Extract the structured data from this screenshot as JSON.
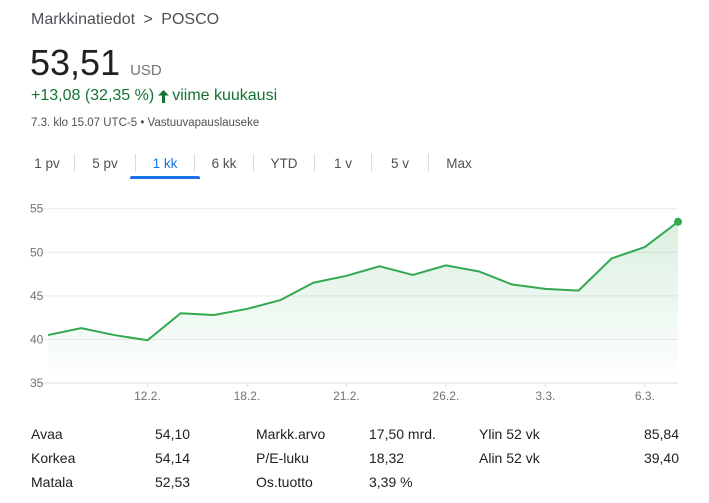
{
  "breadcrumb": {
    "parent": "Markkinatiedot",
    "separator": ">",
    "current": "POSCO"
  },
  "quote": {
    "price": "53,51",
    "currency": "USD",
    "change": "+13,08 (32,35 %)",
    "period_label": "viime kuukausi",
    "timestamp": "7.3. klo 15.07 UTC-5",
    "bullet": "•",
    "disclaimer": "Vastuuvapauslauseke"
  },
  "tabs": [
    {
      "label": "1 pv",
      "active": false
    },
    {
      "label": "5 pv",
      "active": false
    },
    {
      "label": "1 kk",
      "active": true
    },
    {
      "label": "6 kk",
      "active": false
    },
    {
      "label": "YTD",
      "active": false
    },
    {
      "label": "1 v",
      "active": false
    },
    {
      "label": "5 v",
      "active": false
    },
    {
      "label": "Max",
      "active": false
    }
  ],
  "colors": {
    "up": "#137333",
    "line": "#34a853",
    "accent": "#1a73e8",
    "grid": "#e8eaed"
  },
  "chart_data": {
    "type": "area",
    "title": "",
    "xlabel": "",
    "ylabel": "",
    "ylim": [
      35,
      56
    ],
    "yticks": [
      35,
      40,
      45,
      50,
      55
    ],
    "x_tick_labels": [
      "12.2.",
      "18.2.",
      "21.2.",
      "26.2.",
      "3.3.",
      "6.3."
    ],
    "x_tick_index": [
      3,
      6,
      9,
      12,
      15,
      18
    ],
    "grid": true,
    "series": [
      {
        "values": [
          40.5,
          41.3,
          40.5,
          39.9,
          43.0,
          42.8,
          43.5,
          44.5,
          46.5,
          47.3,
          48.4,
          47.4,
          48.5,
          47.8,
          46.3,
          45.8,
          45.6,
          49.3,
          50.6,
          53.5
        ]
      }
    ]
  },
  "stats": {
    "row1": {
      "open_label": "Avaa",
      "open_value": "54,10",
      "mcap_label": "Markk.arvo",
      "mcap_value": "17,50 mrd.",
      "high52_label": "Ylin 52 vk",
      "high52_value": "85,84"
    },
    "row2": {
      "high_label": "Korkea",
      "high_value": "54,14",
      "pe_label": "P/E-luku",
      "pe_value": "18,32",
      "low52_label": "Alin 52 vk",
      "low52_value": "39,40"
    },
    "row3": {
      "low_label": "Matala",
      "low_value": "52,53",
      "div_label": "Os.tuotto",
      "div_value": "3,39 %"
    }
  }
}
